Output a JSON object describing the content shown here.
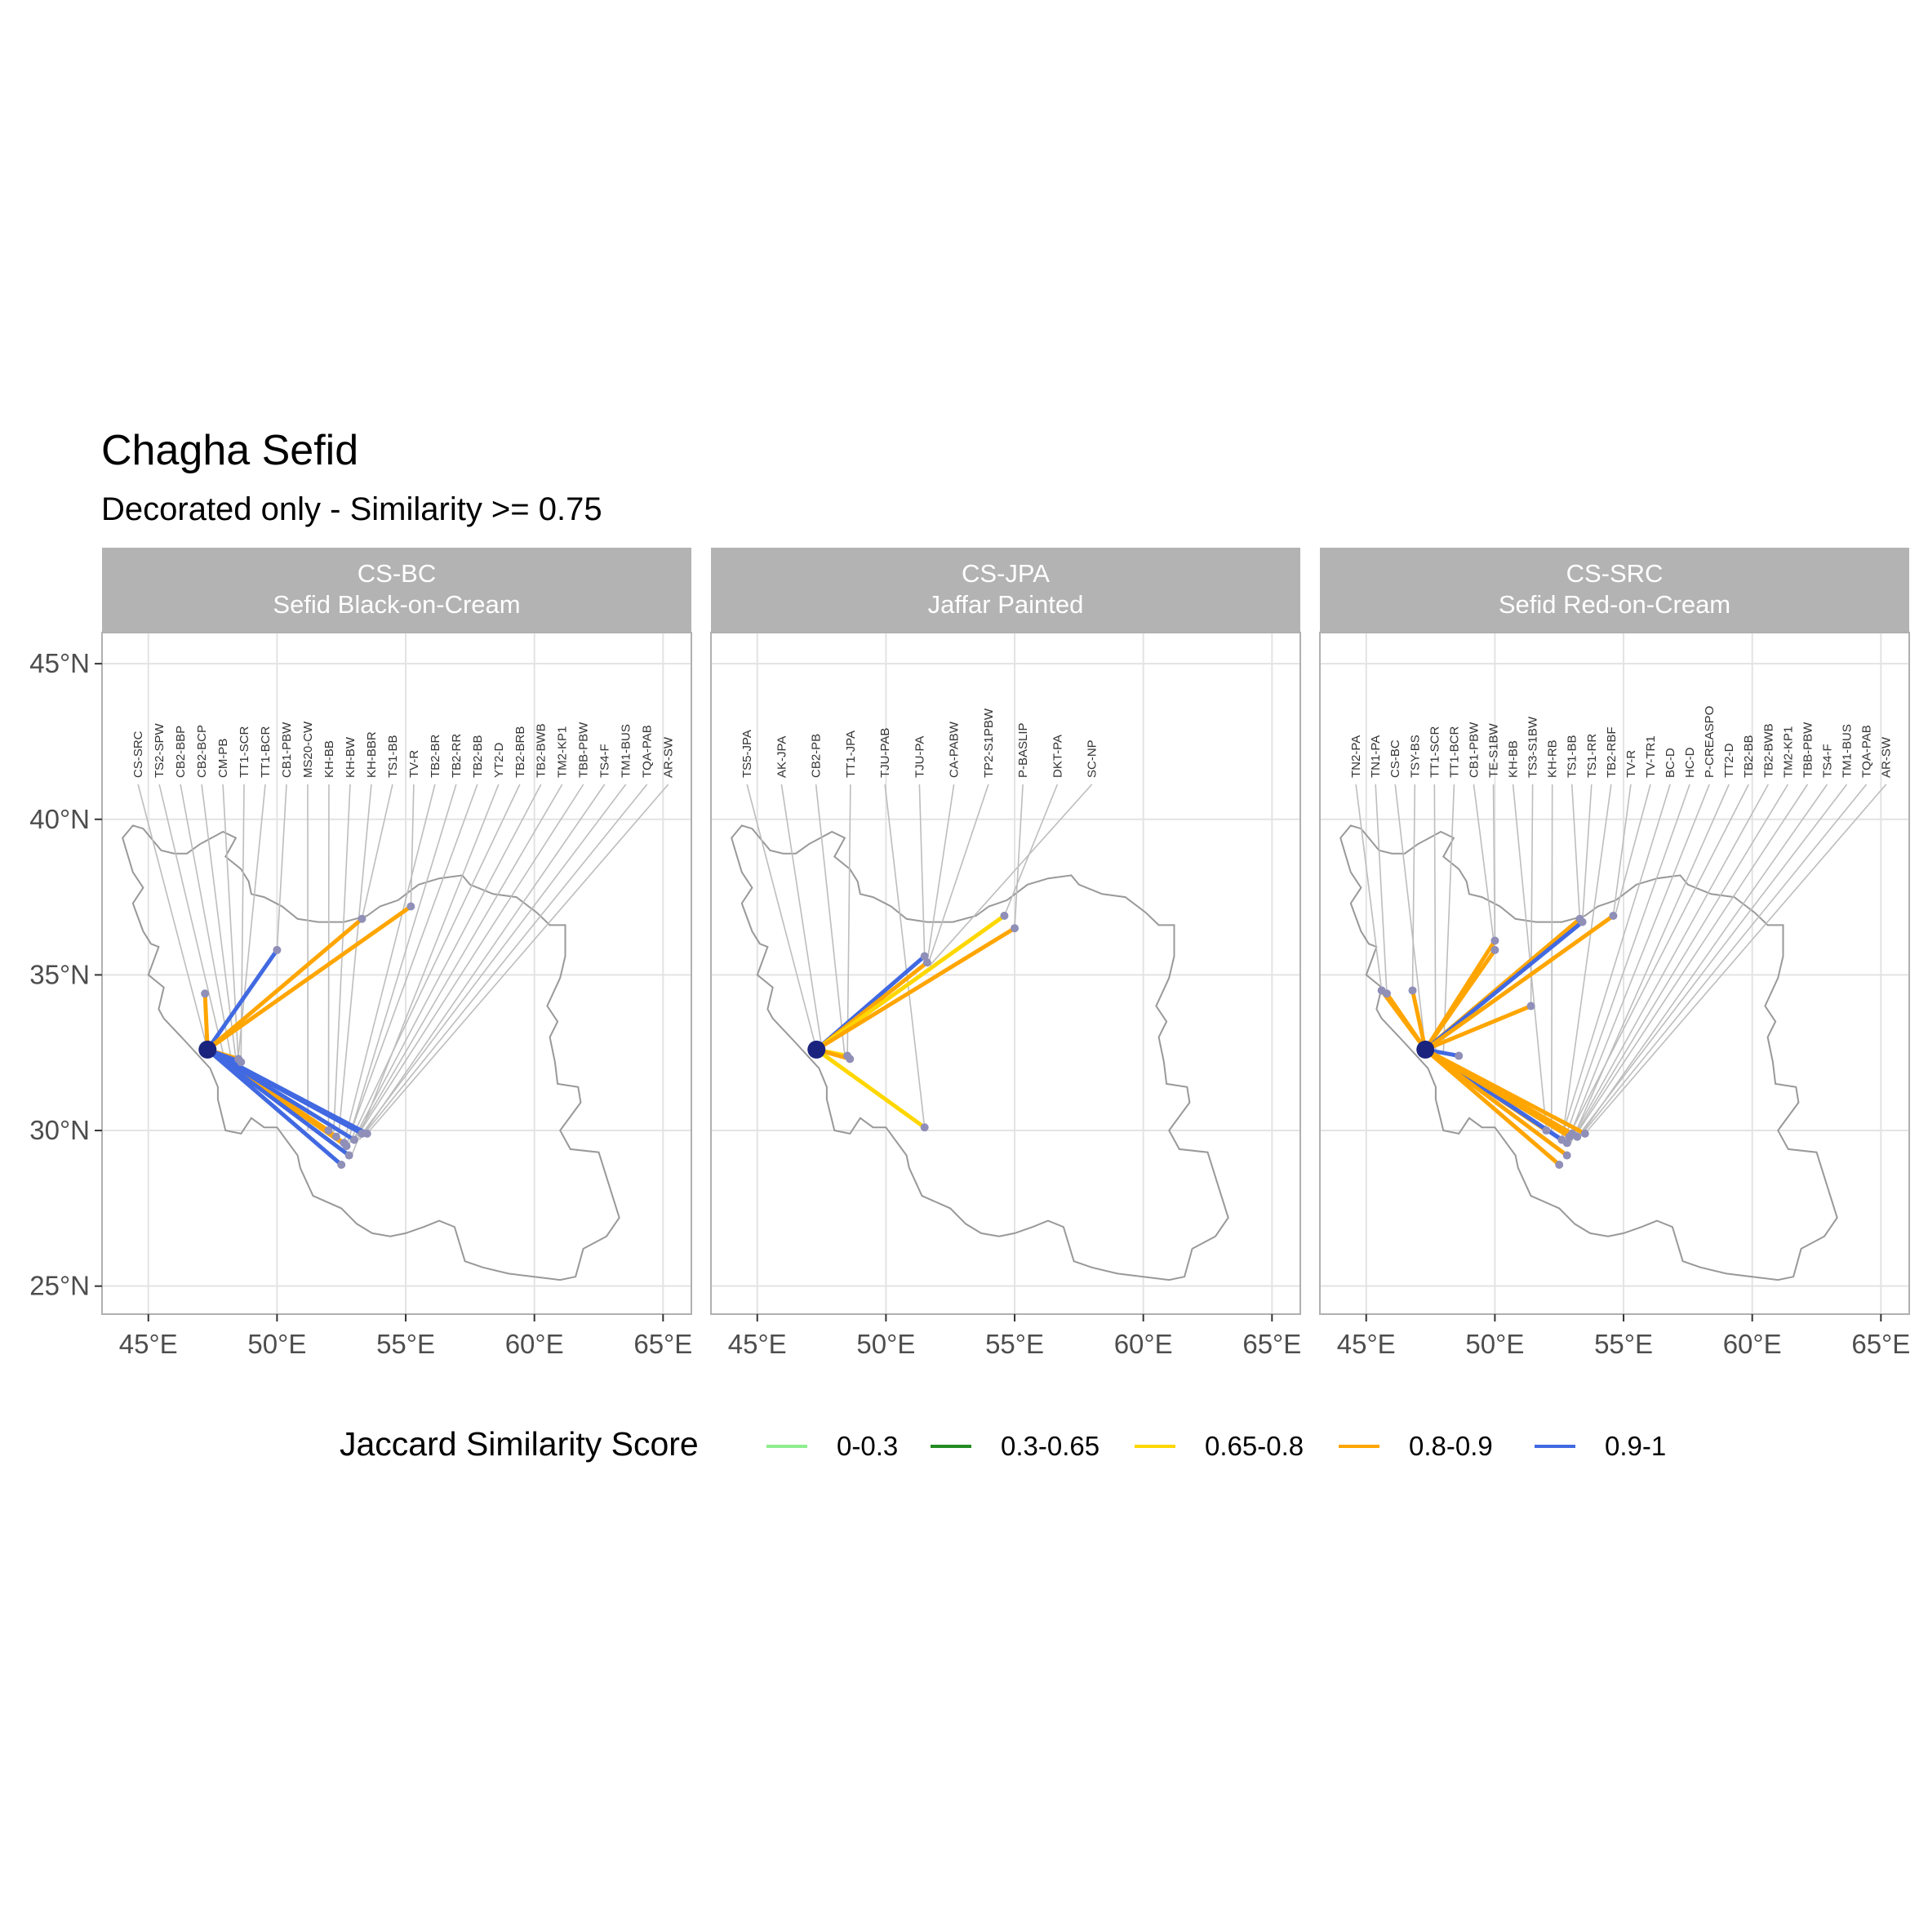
{
  "title": "Chagha Sefid",
  "subtitle": "Decorated only - Similarity >= 0.75",
  "legend": {
    "title": "Jaccard Similarity Score",
    "items": [
      {
        "label": "0-0.3",
        "color": "#90EE90"
      },
      {
        "label": "0.3-0.65",
        "color": "#228B22"
      },
      {
        "label": "0.65-0.8",
        "color": "#FFD700"
      },
      {
        "label": "0.8-0.9",
        "color": "#FFA500"
      },
      {
        "label": "0.9-1",
        "color": "#4169E1"
      }
    ]
  },
  "axes": {
    "x_ticks": [
      {
        "value": 45,
        "label": "45°E"
      },
      {
        "value": 50,
        "label": "50°E"
      },
      {
        "value": 55,
        "label": "55°E"
      },
      {
        "value": 60,
        "label": "60°E"
      },
      {
        "value": 65,
        "label": "65°E"
      }
    ],
    "y_ticks": [
      {
        "value": 25,
        "label": "25°N"
      },
      {
        "value": 30,
        "label": "30°N"
      },
      {
        "value": 35,
        "label": "35°N"
      },
      {
        "value": 40,
        "label": "40°N"
      },
      {
        "value": 45,
        "label": "45°N"
      }
    ],
    "xlim": [
      43.2,
      66.1
    ],
    "ylim": [
      24.1,
      46.0
    ]
  },
  "colors": {
    "origin": "#1a237e",
    "border": "#999999",
    "leader": "#bdbdbd",
    "strip": "#b3b3b3",
    "site_point": "#8f8fb8"
  },
  "chart_data": {
    "type": "map",
    "origin": {
      "lon": 47.3,
      "lat": 32.6
    },
    "panels": [
      {
        "strip_code": "CS-BC",
        "strip_name": "Sefid Black-on-Cream",
        "label_x_span": [
          44.6,
          65.2
        ],
        "labels": [
          {
            "name": "CS-SRC",
            "lon": 47.3,
            "lat": 32.6
          },
          {
            "name": "TS2-SPW",
            "lon": 47.9,
            "lat": 32.5
          },
          {
            "name": "CB2-BBP",
            "lon": 48.2,
            "lat": 32.4
          },
          {
            "name": "CB2-BCP",
            "lon": 48.4,
            "lat": 32.3
          },
          {
            "name": "CM-PB",
            "lon": 48.5,
            "lat": 32.2
          },
          {
            "name": "TT1-SCR",
            "lon": 48.6,
            "lat": 32.3
          },
          {
            "name": "TT1-BCR",
            "lon": 48.5,
            "lat": 32.4
          },
          {
            "name": "CB1-PBW",
            "lon": 50.0,
            "lat": 35.8
          },
          {
            "name": "MS20-CW",
            "lon": 51.2,
            "lat": 30.0
          },
          {
            "name": "KH-BB",
            "lon": 52.0,
            "lat": 30.0
          },
          {
            "name": "KH-BW",
            "lon": 52.2,
            "lat": 29.9
          },
          {
            "name": "KH-BBR",
            "lon": 52.4,
            "lat": 29.9
          },
          {
            "name": "TS1-BB",
            "lon": 53.3,
            "lat": 36.8
          },
          {
            "name": "TV-R",
            "lon": 55.2,
            "lat": 37.2
          },
          {
            "name": "TB2-BR",
            "lon": 52.6,
            "lat": 29.6
          },
          {
            "name": "TB2-RR",
            "lon": 52.7,
            "lat": 29.5
          },
          {
            "name": "TB2-BB",
            "lon": 52.8,
            "lat": 29.8
          },
          {
            "name": "YT2-D",
            "lon": 52.9,
            "lat": 29.2
          },
          {
            "name": "TB2-BRB",
            "lon": 52.7,
            "lat": 29.4
          },
          {
            "name": "TB2-BWB",
            "lon": 52.9,
            "lat": 29.6
          },
          {
            "name": "TM2-KP1",
            "lon": 53.0,
            "lat": 29.7
          },
          {
            "name": "TBB-PBW",
            "lon": 53.1,
            "lat": 29.8
          },
          {
            "name": "TS4-F",
            "lon": 53.2,
            "lat": 29.7
          },
          {
            "name": "TM1-BUS",
            "lon": 53.3,
            "lat": 29.9
          },
          {
            "name": "TQA-PAB",
            "lon": 53.4,
            "lat": 29.9
          },
          {
            "name": "AR-SW",
            "lon": 53.5,
            "lat": 29.9
          }
        ],
        "connections": [
          {
            "to": [
              47.2,
              34.4
            ],
            "score": 0.85
          },
          {
            "to": [
              48.5,
              32.3
            ],
            "score": 0.85
          },
          {
            "to": [
              48.6,
              32.2
            ],
            "score": 0.92
          },
          {
            "to": [
              50.0,
              35.8
            ],
            "score": 0.93
          },
          {
            "to": [
              53.3,
              36.8
            ],
            "score": 0.86
          },
          {
            "to": [
              55.2,
              37.2
            ],
            "score": 0.85
          },
          {
            "to": [
              52.0,
              30.0
            ],
            "score": 0.85
          },
          {
            "to": [
              52.3,
              29.8
            ],
            "score": 0.87
          },
          {
            "to": [
              52.7,
              29.5
            ],
            "score": 0.84
          },
          {
            "to": [
              52.6,
              29.6
            ],
            "score": 0.88
          },
          {
            "to": [
              53.0,
              29.7
            ],
            "score": 0.92
          },
          {
            "to": [
              53.3,
              29.9
            ],
            "score": 0.93
          },
          {
            "to": [
              53.5,
              29.9
            ],
            "score": 0.91
          },
          {
            "to": [
              52.8,
              29.2
            ],
            "score": 0.92
          },
          {
            "to": [
              52.5,
              28.9
            ],
            "score": 0.93
          }
        ]
      },
      {
        "strip_code": "CS-JPA",
        "strip_name": "Jaffar Painted",
        "label_x_span": [
          44.6,
          58.0
        ],
        "labels": [
          {
            "name": "TS5-JPA",
            "lon": 47.3,
            "lat": 32.6
          },
          {
            "name": "AK-JPA",
            "lon": 47.5,
            "lat": 32.7
          },
          {
            "name": "CB2-PB",
            "lon": 48.4,
            "lat": 32.4
          },
          {
            "name": "TT1-JPA",
            "lon": 48.5,
            "lat": 32.3
          },
          {
            "name": "TJU-PAB",
            "lon": 51.5,
            "lat": 30.1
          },
          {
            "name": "TJU-PA",
            "lon": 51.5,
            "lat": 35.6
          },
          {
            "name": "CA-PABW",
            "lon": 51.6,
            "lat": 35.4
          },
          {
            "name": "TP2-S1PBW",
            "lon": 51.7,
            "lat": 35.5
          },
          {
            "name": "P-BASLIP",
            "lon": 55.0,
            "lat": 36.5
          },
          {
            "name": "DKT-PA",
            "lon": 54.6,
            "lat": 36.9
          },
          {
            "name": "SC-NP",
            "lon": 51.7,
            "lat": 35.3
          }
        ],
        "connections": [
          {
            "to": [
              48.5,
              32.4
            ],
            "score": 0.76
          },
          {
            "to": [
              48.6,
              32.3
            ],
            "score": 0.85
          },
          {
            "to": [
              51.5,
              30.1
            ],
            "score": 0.78
          },
          {
            "to": [
              51.5,
              35.6
            ],
            "score": 0.93
          },
          {
            "to": [
              51.6,
              35.4
            ],
            "score": 0.85
          },
          {
            "to": [
              54.6,
              36.9
            ],
            "score": 0.78
          },
          {
            "to": [
              55.0,
              36.5
            ],
            "score": 0.86
          }
        ]
      },
      {
        "strip_code": "CS-SRC",
        "strip_name": "Sefid Red-on-Cream",
        "label_x_span": [
          44.6,
          65.2
        ],
        "labels": [
          {
            "name": "TN2-PA",
            "lon": 45.6,
            "lat": 34.5
          },
          {
            "name": "TN1-PA",
            "lon": 45.8,
            "lat": 34.4
          },
          {
            "name": "CS-BC",
            "lon": 47.3,
            "lat": 32.6
          },
          {
            "name": "TSY-BS",
            "lon": 46.8,
            "lat": 34.5
          },
          {
            "name": "TT1-SCR",
            "lon": 47.7,
            "lat": 32.4
          },
          {
            "name": "TT1-BCR",
            "lon": 48.0,
            "lat": 32.5
          },
          {
            "name": "CB1-PBW",
            "lon": 50.0,
            "lat": 35.8
          },
          {
            "name": "TE-S1BW",
            "lon": 50.0,
            "lat": 36.1
          },
          {
            "name": "KH-BB",
            "lon": 52.0,
            "lat": 30.0
          },
          {
            "name": "TS3-S1BW",
            "lon": 51.4,
            "lat": 34.0
          },
          {
            "name": "KH-RB",
            "lon": 52.2,
            "lat": 29.9
          },
          {
            "name": "TS1-BB",
            "lon": 53.3,
            "lat": 36.8
          },
          {
            "name": "TS1-RR",
            "lon": 53.4,
            "lat": 36.7
          },
          {
            "name": "TB2-RBF",
            "lon": 52.6,
            "lat": 29.6
          },
          {
            "name": "TV-R",
            "lon": 54.6,
            "lat": 36.9
          },
          {
            "name": "TV-TR1",
            "lon": 54.7,
            "lat": 37.0
          },
          {
            "name": "BC-D",
            "lon": 52.6,
            "lat": 29.8
          },
          {
            "name": "HC-D",
            "lon": 52.7,
            "lat": 29.7
          },
          {
            "name": "P-CREASPO",
            "lon": 52.8,
            "lat": 29.6
          },
          {
            "name": "TT2-D",
            "lon": 52.9,
            "lat": 29.5
          },
          {
            "name": "TB2-BB",
            "lon": 52.8,
            "lat": 29.7
          },
          {
            "name": "TB2-BWB",
            "lon": 52.9,
            "lat": 29.6
          },
          {
            "name": "TM2-KP1",
            "lon": 53.0,
            "lat": 29.7
          },
          {
            "name": "TBB-PBW",
            "lon": 53.1,
            "lat": 29.8
          },
          {
            "name": "TS4-F",
            "lon": 53.2,
            "lat": 29.7
          },
          {
            "name": "TM1-BUS",
            "lon": 53.3,
            "lat": 29.9
          },
          {
            "name": "TQA-PAB",
            "lon": 53.4,
            "lat": 29.9
          },
          {
            "name": "AR-SW",
            "lon": 53.5,
            "lat": 29.9
          }
        ],
        "connections": [
          {
            "to": [
              45.6,
              34.5
            ],
            "score": 0.84
          },
          {
            "to": [
              45.8,
              34.4
            ],
            "score": 0.85
          },
          {
            "to": [
              46.8,
              34.5
            ],
            "score": 0.86
          },
          {
            "to": [
              48.6,
              32.4
            ],
            "score": 0.92
          },
          {
            "to": [
              50.0,
              35.8
            ],
            "score": 0.85
          },
          {
            "to": [
              50.0,
              36.1
            ],
            "score": 0.86
          },
          {
            "to": [
              51.4,
              34.0
            ],
            "score": 0.84
          },
          {
            "to": [
              53.3,
              36.8
            ],
            "score": 0.87
          },
          {
            "to": [
              53.4,
              36.7
            ],
            "score": 0.92
          },
          {
            "to": [
              54.6,
              36.9
            ],
            "score": 0.86
          },
          {
            "to": [
              52.0,
              30.0
            ],
            "score": 0.85
          },
          {
            "to": [
              52.6,
              29.7
            ],
            "score": 0.93
          },
          {
            "to": [
              52.8,
              29.6
            ],
            "score": 0.92
          },
          {
            "to": [
              52.9,
              29.8
            ],
            "score": 0.86
          },
          {
            "to": [
              53.0,
              29.9
            ],
            "score": 0.85
          },
          {
            "to": [
              53.2,
              29.8
            ],
            "score": 0.87
          },
          {
            "to": [
              53.5,
              29.9
            ],
            "score": 0.84
          },
          {
            "to": [
              52.8,
              29.2
            ],
            "score": 0.85
          },
          {
            "to": [
              52.5,
              28.9
            ],
            "score": 0.84
          }
        ]
      }
    ]
  }
}
